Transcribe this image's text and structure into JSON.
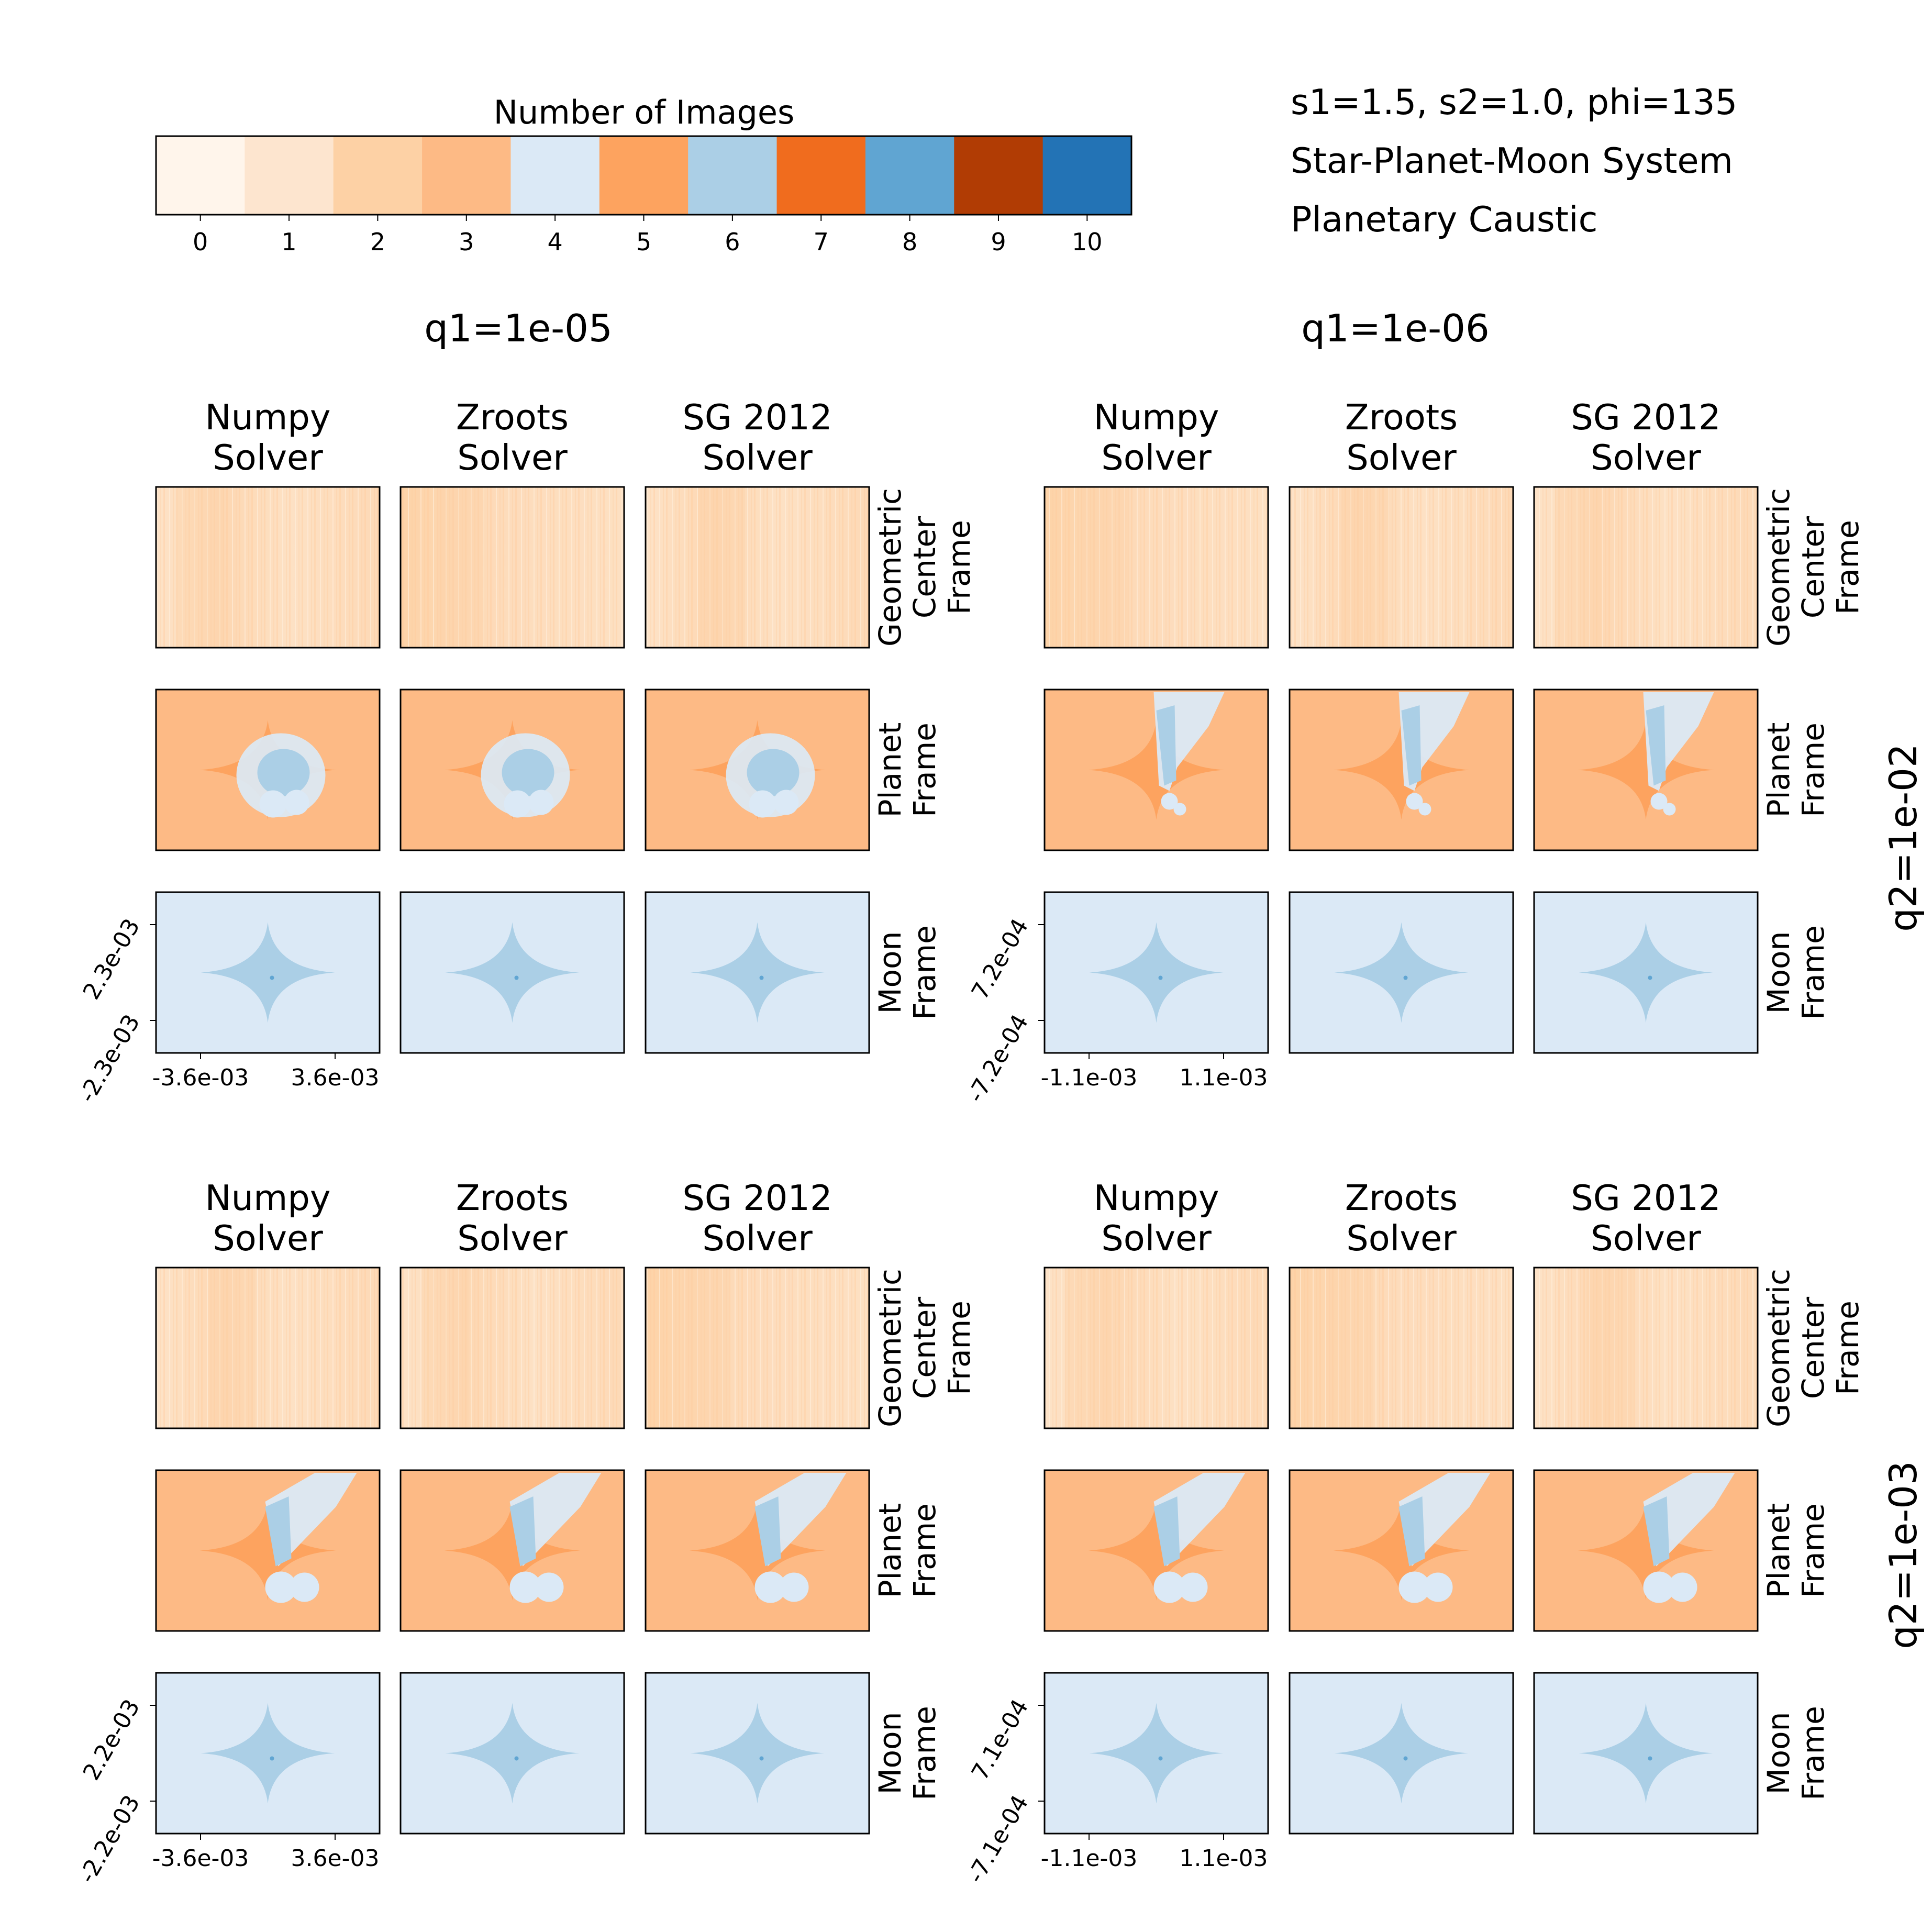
{
  "info": {
    "line1": "s1=1.5, s2=1.0, phi=135",
    "line2": "Star-Planet-Moon System",
    "line3": "Planetary Caustic"
  },
  "colorbar": {
    "title": "Number of Images",
    "ticks": [
      "0",
      "1",
      "2",
      "3",
      "4",
      "5",
      "6",
      "7",
      "8",
      "9",
      "10"
    ],
    "colors": [
      "#fff5eb",
      "#fde5cf",
      "#fdd1a5",
      "#fdba85",
      "#dbe9f6",
      "#fda35f",
      "#abcfe6",
      "#f06c1e",
      "#60a5d2",
      "#b13c04",
      "#2373b5"
    ]
  },
  "column_groups": [
    "q1=1e-05",
    "q1=1e-06"
  ],
  "row_groups": [
    "q2=1e-02",
    "q2=1e-03"
  ],
  "solvers": [
    {
      "line1": "Numpy",
      "line2": "Solver"
    },
    {
      "line1": "Zroots",
      "line2": "Solver"
    },
    {
      "line1": "SG 2012",
      "line2": "Solver"
    }
  ],
  "frames": [
    {
      "line1": "Geometric",
      "line2": "Center",
      "line3": "Frame"
    },
    {
      "line1": "Planet",
      "line2": "Frame",
      "line3": ""
    },
    {
      "line1": "Moon",
      "line2": "Frame",
      "line3": ""
    }
  ],
  "axes_ticks": [
    {
      "x": [
        "-3.6e-03",
        "3.6e-03"
      ],
      "y": [
        "2.3e-03",
        "-2.3e-03"
      ]
    },
    {
      "x": [
        "-1.1e-03",
        "1.1e-03"
      ],
      "y": [
        "7.2e-04",
        "-7.2e-04"
      ]
    },
    {
      "x": [
        "-3.6e-03",
        "3.6e-03"
      ],
      "y": [
        "2.2e-03",
        "-2.2e-03"
      ]
    },
    {
      "x": [
        "-1.1e-03",
        "1.1e-03"
      ],
      "y": [
        "7.1e-04",
        "-7.1e-04"
      ]
    }
  ],
  "chart_data": {
    "type": "heatmap",
    "title": "",
    "value_label": "Number of Images",
    "value_ticks": [
      0,
      1,
      2,
      3,
      4,
      5,
      6,
      7,
      8,
      9,
      10
    ],
    "blocks": [
      {
        "q1": "1e-05",
        "q2": "1e-02",
        "x_ticks": [
          -0.0036,
          0.0036
        ],
        "y_ticks": [
          0.0023,
          -0.0023
        ],
        "frames": {
          "Geometric Center Frame": "mostly 1-2 (noisy background)",
          "Planet Frame": "background 3, caustic interior 5, region of 4 with 6 near center",
          "Moon Frame": "background 4, caustic interior 6, small 8 region"
        }
      },
      {
        "q1": "1e-06",
        "q2": "1e-02",
        "x_ticks": [
          -0.0011,
          0.0011
        ],
        "y_ticks": [
          0.00072,
          -0.00072
        ],
        "frames": {
          "Geometric Center Frame": "mostly 1-2 (noisy background)",
          "Planet Frame": "background 3, caustic interior 5, elongated region of 4/6 toward upper right",
          "Moon Frame": "background 4, caustic interior 6, small 8 region"
        }
      },
      {
        "q1": "1e-05",
        "q2": "1e-03",
        "x_ticks": [
          -0.0036,
          0.0036
        ],
        "y_ticks": [
          0.0022,
          -0.0022
        ],
        "frames": {
          "Geometric Center Frame": "mostly 1-2 (noisy background)",
          "Planet Frame": "background 3, caustic interior 5, large region of 4/6 toward upper right",
          "Moon Frame": "background 4, caustic interior 6"
        }
      },
      {
        "q1": "1e-06",
        "q2": "1e-03",
        "x_ticks": [
          -0.0011,
          0.0011
        ],
        "y_ticks": [
          0.00071,
          -0.00071
        ],
        "frames": {
          "Geometric Center Frame": "mostly 1-2 (noisy background)",
          "Planet Frame": "background 3, caustic interior 5, large region of 4/6 toward upper right",
          "Moon Frame": "background 4, caustic interior 6"
        }
      }
    ],
    "solvers": [
      "Numpy Solver",
      "Zroots Solver",
      "SG 2012 Solver"
    ],
    "frames": [
      "Geometric Center Frame",
      "Planet Frame",
      "Moon Frame"
    ]
  }
}
